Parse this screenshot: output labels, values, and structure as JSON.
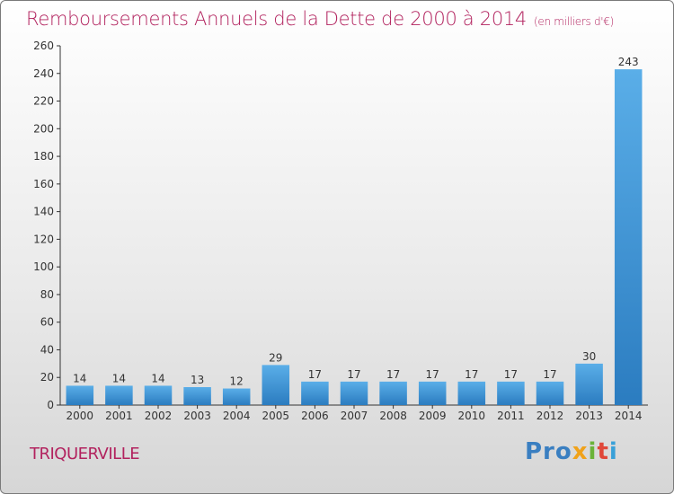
{
  "header": {
    "title": "Remboursements Annuels de la Dette de 2000 à 2014",
    "unit": "(en milliers d'€)"
  },
  "footer": {
    "commune": "TRIQUERVILLE",
    "logo": [
      "Pro",
      "x",
      "i",
      "t",
      "i"
    ]
  },
  "colors": {
    "title": "#b2225e",
    "bar_light": "#5aaee8",
    "bar_dark": "#2b7cc0"
  },
  "chart_data": {
    "type": "bar",
    "title": "Remboursements Annuels de la Dette de 2000 à 2014",
    "xlabel": "",
    "ylabel": "",
    "categories": [
      "2000",
      "2001",
      "2002",
      "2003",
      "2004",
      "2005",
      "2006",
      "2007",
      "2008",
      "2009",
      "2010",
      "2011",
      "2012",
      "2013",
      "2014"
    ],
    "values": [
      14,
      14,
      14,
      13,
      12,
      29,
      17,
      17,
      17,
      17,
      17,
      17,
      17,
      30,
      243
    ],
    "ylim": [
      0,
      260
    ],
    "yticks": [
      0,
      20,
      40,
      60,
      80,
      100,
      120,
      140,
      160,
      180,
      200,
      220,
      240,
      260
    ],
    "grid": false,
    "legend": "none"
  }
}
